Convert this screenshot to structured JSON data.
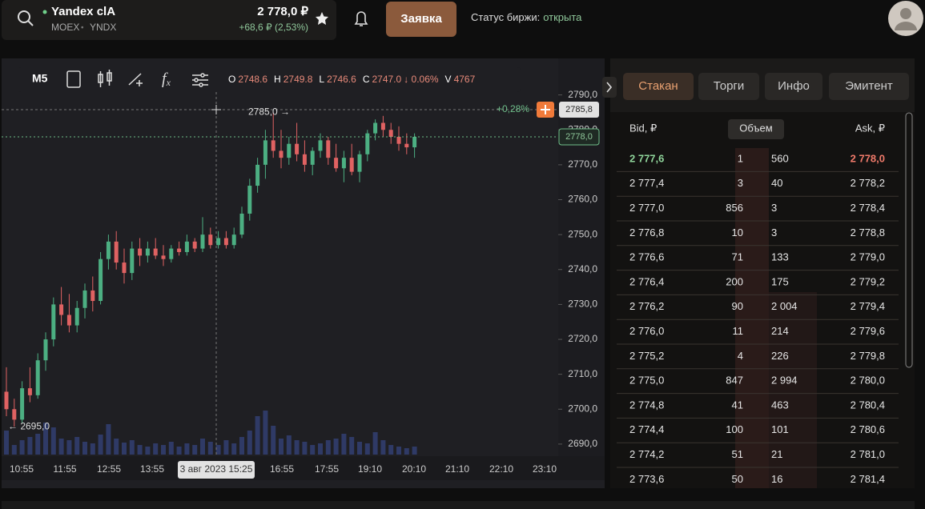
{
  "header": {
    "ticker": "Yandex clA",
    "exchange": "MOEX",
    "separator": "•",
    "code": "YNDX",
    "price": "2 778,0 ₽",
    "change": "+68,6 ₽ (2,53%)",
    "order_button": "Заявка",
    "status_label": "Статус биржи:",
    "status_value": "открыта"
  },
  "toolbar": {
    "interval": "M5",
    "ohlc": [
      "O",
      "2748.6",
      "H",
      "2749.8",
      "L",
      "2746.6",
      "C",
      "2747.0",
      "↓ 0.06%",
      "V",
      "4767"
    ]
  },
  "chart": {
    "type": "candlestick",
    "ylim": [
      2687,
      2800
    ],
    "yticks": [
      {
        "value": 2690,
        "label": "2690,0"
      },
      {
        "value": 2700,
        "label": "2700,0"
      },
      {
        "value": 2710,
        "label": "2710,0"
      },
      {
        "value": 2720,
        "label": "2720,0"
      },
      {
        "value": 2730,
        "label": "2730,0"
      },
      {
        "value": 2740,
        "label": "2740,0"
      },
      {
        "value": 2750,
        "label": "2750,0"
      },
      {
        "value": 2760,
        "label": "2760,0"
      },
      {
        "value": 2770,
        "label": "2770,0"
      },
      {
        "value": 2780,
        "label": "2780,0"
      },
      {
        "value": 2790,
        "label": "2790,0"
      }
    ],
    "cursor_price": {
      "value": 2785.8,
      "label": "2785,8"
    },
    "last_price": {
      "value": 2778.0,
      "label": "2778,0"
    },
    "cursor_change": "+0,28%",
    "high_marker": {
      "value": 2785.0,
      "label": "2785,0 →"
    },
    "low_marker": {
      "value": 2695.0,
      "label": "← 2695,0"
    },
    "x_labels": [
      "10:55",
      "11:55",
      "12:55",
      "13:55",
      "3 авг 2023 15:25",
      "16:55",
      "17:55",
      "19:10",
      "20:10",
      "21:10",
      "22:10",
      "23:10"
    ],
    "candles": [
      [
        2705,
        2712,
        2698,
        2700
      ],
      [
        2700,
        2703,
        2695,
        2697
      ],
      [
        2697,
        2708,
        2696,
        2706
      ],
      [
        2706,
        2712,
        2702,
        2704
      ],
      [
        2704,
        2716,
        2703,
        2714
      ],
      [
        2714,
        2722,
        2711,
        2720
      ],
      [
        2720,
        2732,
        2718,
        2730
      ],
      [
        2730,
        2735,
        2724,
        2727
      ],
      [
        2727,
        2733,
        2722,
        2724
      ],
      [
        2724,
        2731,
        2722,
        2729
      ],
      [
        2729,
        2736,
        2726,
        2734
      ],
      [
        2734,
        2738,
        2728,
        2731
      ],
      [
        2731,
        2745,
        2730,
        2743
      ],
      [
        2743,
        2750,
        2740,
        2748
      ],
      [
        2748,
        2751,
        2740,
        2742
      ],
      [
        2742,
        2746,
        2736,
        2739
      ],
      [
        2739,
        2748,
        2737,
        2746
      ],
      [
        2746,
        2749,
        2741,
        2744
      ],
      [
        2744,
        2748,
        2742,
        2746
      ],
      [
        2746,
        2749,
        2743,
        2744
      ],
      [
        2744,
        2747,
        2741,
        2743
      ],
      [
        2743,
        2747,
        2742,
        2746
      ],
      [
        2746,
        2748,
        2744,
        2745
      ],
      [
        2745,
        2750,
        2744,
        2748
      ],
      [
        2748,
        2749,
        2745,
        2746
      ],
      [
        2746,
        2755,
        2745,
        2750
      ],
      [
        2750,
        2752,
        2746,
        2747
      ],
      [
        2747,
        2751,
        2746,
        2749
      ],
      [
        2749,
        2751,
        2746,
        2747
      ],
      [
        2747,
        2752,
        2746,
        2750
      ],
      [
        2750,
        2758,
        2749,
        2756
      ],
      [
        2756,
        2766,
        2754,
        2764
      ],
      [
        2764,
        2772,
        2762,
        2770
      ],
      [
        2770,
        2780,
        2766,
        2777
      ],
      [
        2777,
        2785,
        2772,
        2774
      ],
      [
        2774,
        2780,
        2769,
        2772
      ],
      [
        2772,
        2778,
        2770,
        2776
      ],
      [
        2776,
        2782,
        2771,
        2773
      ],
      [
        2773,
        2777,
        2768,
        2770
      ],
      [
        2770,
        2775,
        2767,
        2774
      ],
      [
        2774,
        2779,
        2772,
        2777
      ],
      [
        2777,
        2778,
        2770,
        2772
      ],
      [
        2772,
        2776,
        2768,
        2769
      ],
      [
        2769,
        2774,
        2765,
        2772
      ],
      [
        2772,
        2776,
        2767,
        2768
      ],
      [
        2768,
        2774,
        2765,
        2773
      ],
      [
        2773,
        2780,
        2771,
        2779
      ],
      [
        2779,
        2783,
        2777,
        2782
      ],
      [
        2782,
        2784,
        2778,
        2780
      ],
      [
        2780,
        2782,
        2776,
        2778
      ],
      [
        2778,
        2781,
        2774,
        2776
      ],
      [
        2776,
        2779,
        2773,
        2775
      ],
      [
        2775,
        2779,
        2772,
        2778
      ]
    ],
    "volumes": [
      30,
      12,
      18,
      22,
      26,
      40,
      34,
      20,
      18,
      22,
      16,
      14,
      25,
      38,
      20,
      15,
      18,
      12,
      10,
      14,
      12,
      16,
      10,
      14,
      12,
      20,
      16,
      12,
      18,
      14,
      22,
      30,
      48,
      55,
      36,
      20,
      24,
      18,
      16,
      12,
      14,
      18,
      20,
      26,
      22,
      16,
      14,
      28,
      18,
      12,
      10,
      8,
      10
    ]
  },
  "order_book": {
    "tabs": [
      "Стакан",
      "Торги",
      "Инфо",
      "Эмитент"
    ],
    "columns": [
      "Bid, ₽",
      "Объем",
      "Ask, ₽"
    ],
    "rows": [
      [
        "2 777,6",
        "1",
        "560",
        "2 778,0"
      ],
      [
        "2 777,4",
        "3",
        "40",
        "2 778,2"
      ],
      [
        "2 777,0",
        "856",
        "3",
        "2 778,4"
      ],
      [
        "2 776,8",
        "10",
        "3",
        "2 778,8"
      ],
      [
        "2 776,6",
        "71",
        "133",
        "2 779,0"
      ],
      [
        "2 776,4",
        "200",
        "175",
        "2 779,2"
      ],
      [
        "2 776,2",
        "90",
        "2 004",
        "2 779,4"
      ],
      [
        "2 776,0",
        "11",
        "214",
        "2 779,6"
      ],
      [
        "2 775,2",
        "4",
        "226",
        "2 779,8"
      ],
      [
        "2 775,0",
        "847",
        "2 994",
        "2 780,0"
      ],
      [
        "2 774,8",
        "41",
        "463",
        "2 780,4"
      ],
      [
        "2 774,4",
        "100",
        "101",
        "2 780,6"
      ],
      [
        "2 774,2",
        "51",
        "21",
        "2 781,0"
      ],
      [
        "2 773,6",
        "50",
        "16",
        "2 781,4"
      ]
    ]
  }
}
